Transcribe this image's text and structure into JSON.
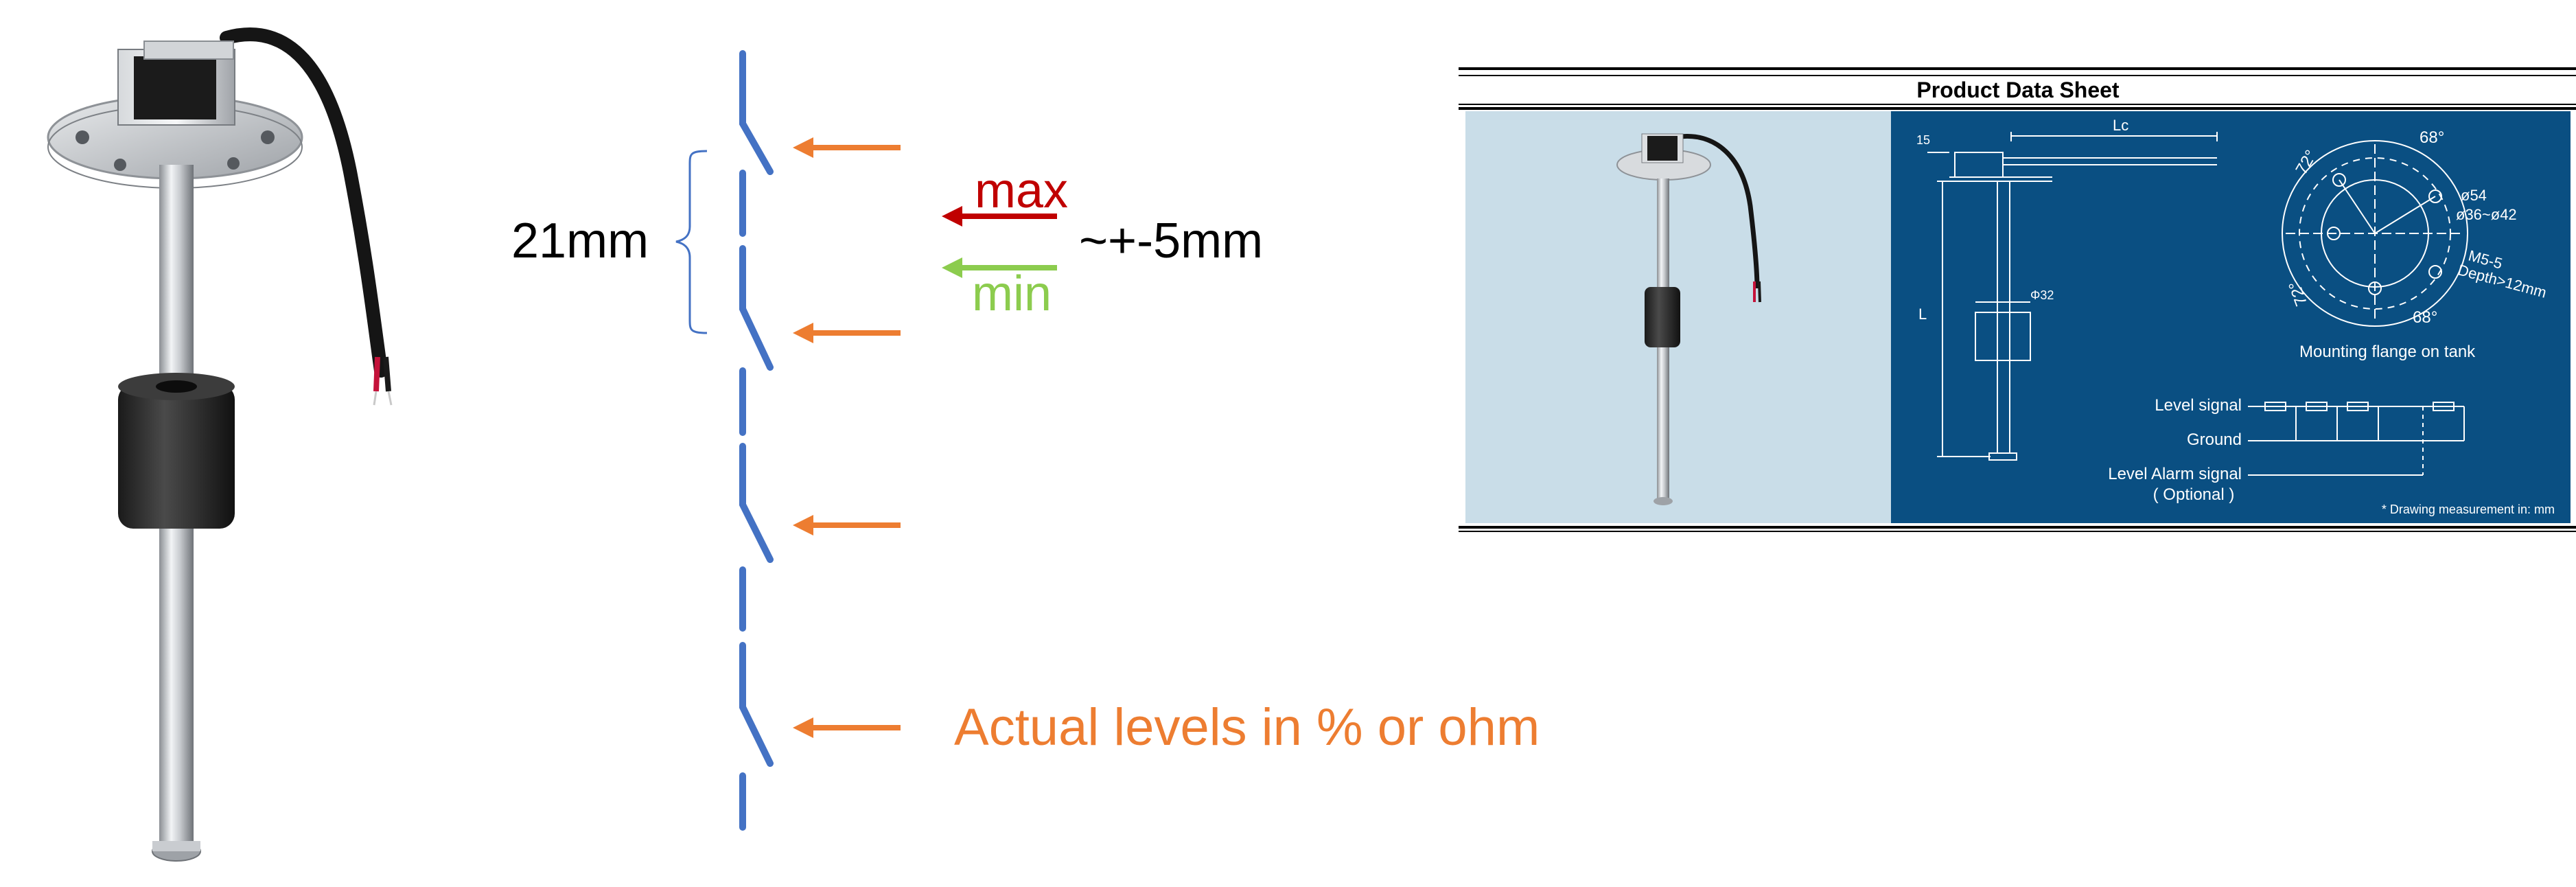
{
  "colors": {
    "switch": "#4472c4",
    "arrow": "#ed7d31",
    "max": "#c00000",
    "min": "#8ccc4e",
    "sheet_panel": "#0a4f82",
    "photo_bg": "#c9dde8"
  },
  "diagram": {
    "spacing_label": "21mm",
    "max_label": "max",
    "min_label": "min",
    "tolerance_label": "~+-5mm",
    "levels_label": "Actual levels in % or ohm"
  },
  "datasheet": {
    "title": "Product Data Sheet",
    "dim_15": "15",
    "dim_lc": "Lc",
    "dim_l": "L",
    "dim_phi32": "Φ32",
    "angle_68_top": "68°",
    "angle_72_top": "72°",
    "angle_72_bottom": "72°",
    "angle_68_bottom": "68°",
    "dia_54": "ø54",
    "dia_36_42": "ø36~ø42",
    "screw": "M5-5",
    "depth": "Depth>12mm",
    "flange_caption": "Mounting flange on tank",
    "level_signal": "Level signal",
    "ground": "Ground",
    "alarm_signal": "Level Alarm signal",
    "optional": "( Optional )",
    "measure_note": "* Drawing measurement in: mm"
  }
}
